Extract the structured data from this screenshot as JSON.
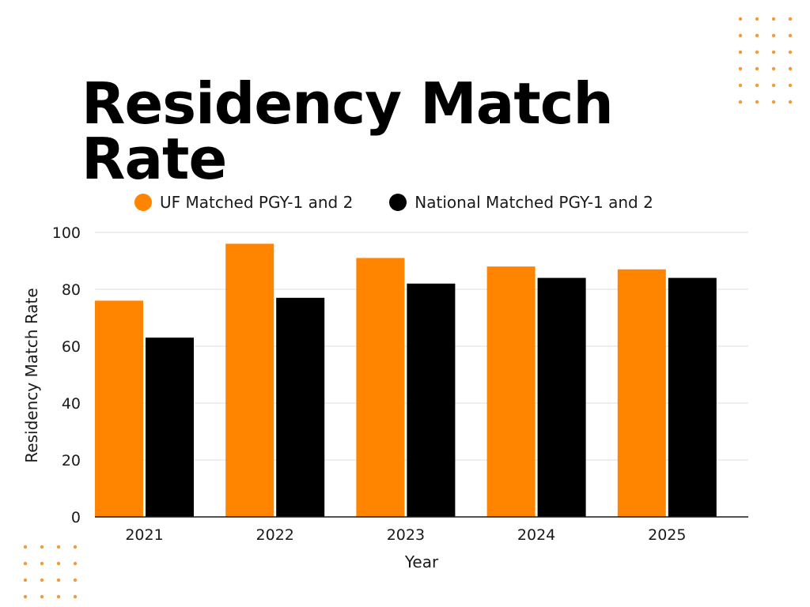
{
  "colors": {
    "uf": "#ff8500",
    "national": "#000000",
    "gridline": "#dddddd",
    "dots": "#f39a3a"
  },
  "chart_data": {
    "type": "bar",
    "title": "Residency Match Rate",
    "xlabel": "Year",
    "ylabel": "Residency Match Rate",
    "categories": [
      "2021",
      "2022",
      "2023",
      "2024",
      "2025"
    ],
    "series": [
      {
        "name": "UF Matched PGY-1 and 2",
        "values": [
          76,
          96,
          91,
          88,
          87
        ]
      },
      {
        "name": "National Matched PGY-1 and 2",
        "values": [
          63,
          77,
          82,
          84,
          84
        ]
      }
    ],
    "ylim": [
      0,
      100
    ],
    "yticks": [
      0,
      20,
      40,
      60,
      80,
      100
    ],
    "grid": true,
    "legend_position": "top"
  }
}
